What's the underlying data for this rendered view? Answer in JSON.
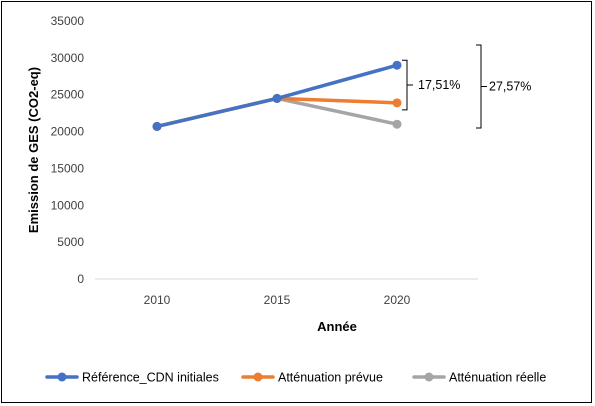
{
  "chart_data": {
    "type": "line",
    "title": "",
    "xlabel": "Année",
    "ylabel": "Emission de GES (CO2-eq)",
    "x": [
      2010,
      2015,
      2020
    ],
    "x_categories": [
      "2010",
      "2015",
      "2020"
    ],
    "ylim": [
      0,
      35000
    ],
    "y_ticks": [
      0,
      5000,
      10000,
      15000,
      20000,
      25000,
      30000,
      35000
    ],
    "y_tick_labels": [
      "0",
      "5000",
      "10000",
      "15000",
      "20000",
      "25000",
      "30000",
      "35000"
    ],
    "grid": false,
    "legend_position": "bottom",
    "series": [
      {
        "name": "Référence_CDN initiales",
        "color": "#4472C4",
        "values": [
          20700,
          24500,
          29000
        ]
      },
      {
        "name": "Atténuation prévue",
        "color": "#ED7D31",
        "values": [
          20700,
          24500,
          23900
        ]
      },
      {
        "name": "Atténuation réelle",
        "color": "#A5A5A5",
        "values": [
          20700,
          24500,
          21000
        ]
      }
    ],
    "annotations": [
      {
        "text": "17,51%",
        "from_series": 0,
        "to_series": 1,
        "x": 2020
      },
      {
        "text": "27,57%",
        "from_series": 0,
        "to_series": 2,
        "x": 2020
      }
    ]
  }
}
